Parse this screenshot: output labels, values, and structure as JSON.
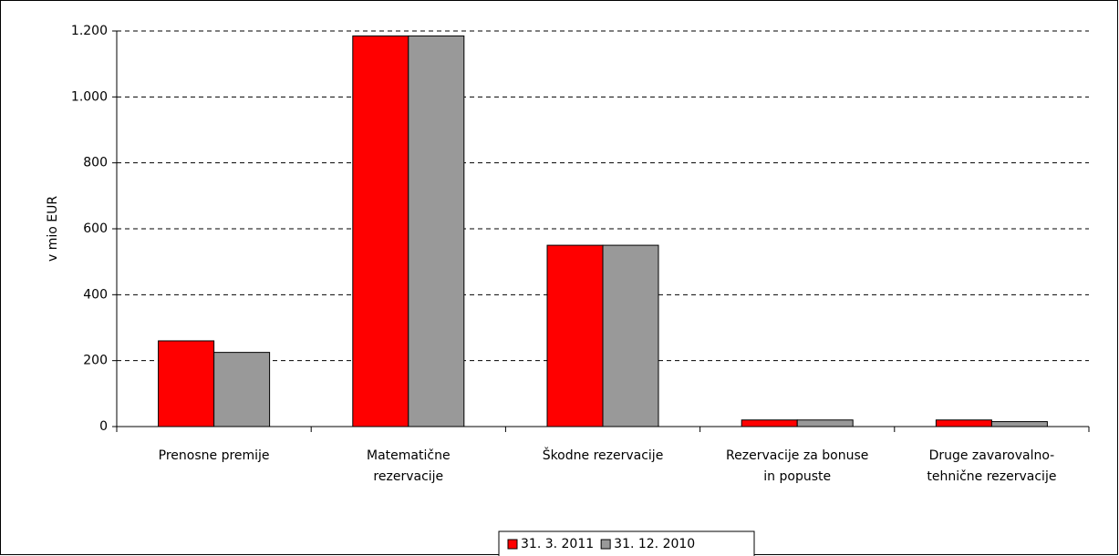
{
  "chart_data": {
    "type": "bar",
    "y_label": "v mio EUR",
    "categories": [
      [
        "Prenosne premije"
      ],
      [
        "Matematične",
        "rezervacije"
      ],
      [
        "Škodne rezervacije"
      ],
      [
        "Rezervacije za bonuse",
        "in popuste"
      ],
      [
        "Druge zavarovalno-",
        "tehnične rezervacije"
      ]
    ],
    "series": [
      {
        "name": "31. 3. 2011",
        "color": "#ff0000",
        "values": [
          260,
          1185,
          550,
          20,
          20
        ]
      },
      {
        "name": "31. 12. 2010",
        "color": "#999999",
        "values": [
          225,
          1185,
          550,
          20,
          15
        ]
      }
    ],
    "ylim": [
      0,
      1200
    ],
    "yticks": [
      0,
      200,
      400,
      600,
      800,
      {
        "value": 1000,
        "label": "1.000"
      },
      {
        "value": 1200,
        "label": "1.200"
      }
    ],
    "grid": true,
    "legend": "bottom"
  }
}
